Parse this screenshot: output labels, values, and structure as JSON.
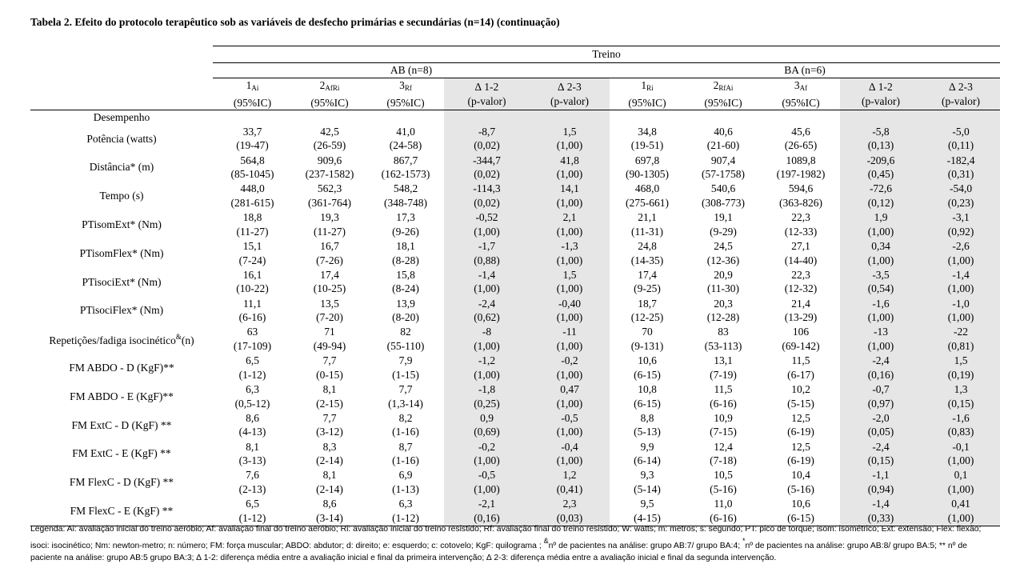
{
  "title": "Tabela 2. Efeito do protocolo terapêutico sob as variáveis de desfecho primárias e secundárias (n=14) (continuação)",
  "header": {
    "treino": "Treino",
    "group_ab": "AB (n=8)",
    "group_ba": "BA (n=6)",
    "section": "Desempenho",
    "cols": [
      {
        "main": "1",
        "sub": "Ai",
        "ci": "(95%IC)"
      },
      {
        "main": "2",
        "sub": "AfRi",
        "ci": "(95%IC)"
      },
      {
        "main": "3",
        "sub": "Rf",
        "ci": "(95%IC)"
      },
      {
        "main": "∆ 1-2",
        "sub": "",
        "ci": "(p-valor)"
      },
      {
        "main": "∆ 2-3",
        "sub": "",
        "ci": "(p-valor)"
      },
      {
        "main": "1",
        "sub": "Ri",
        "ci": "(95%IC)"
      },
      {
        "main": "2",
        "sub": "RfAi",
        "ci": "(95%IC)"
      },
      {
        "main": "3",
        "sub": "Af",
        "ci": "(95%IC)"
      },
      {
        "main": "∆ 1-2",
        "sub": "",
        "ci": "(p-valor)"
      },
      {
        "main": "∆ 2-3",
        "sub": "",
        "ci": "(p-valor)"
      }
    ]
  },
  "rows": [
    {
      "label": "Potência (watts)",
      "v": [
        [
          "33,7",
          "(19-47)"
        ],
        [
          "42,5",
          "(26-59)"
        ],
        [
          "41,0",
          "(24-58)"
        ],
        [
          "-8,7",
          "(0,02)"
        ],
        [
          "1,5",
          "(1,00)"
        ],
        [
          "34,8",
          "(19-51)"
        ],
        [
          "40,6",
          "(21-60)"
        ],
        [
          "45,6",
          "(26-65)"
        ],
        [
          "-5,8",
          "(0,13)"
        ],
        [
          "-5,0",
          "(0,11)"
        ]
      ]
    },
    {
      "label": "Distância* (m)",
      "v": [
        [
          "564,8",
          "(85-1045)"
        ],
        [
          "909,6",
          "(237-1582)"
        ],
        [
          "867,7",
          "(162-1573)"
        ],
        [
          "-344,7",
          "(0,02)"
        ],
        [
          "41,8",
          "(1,00)"
        ],
        [
          "697,8",
          "(90-1305)"
        ],
        [
          "907,4",
          "(57-1758)"
        ],
        [
          "1089,8",
          "(197-1982)"
        ],
        [
          "-209,6",
          "(0,45)"
        ],
        [
          "-182,4",
          "(0,31)"
        ]
      ]
    },
    {
      "label": "Tempo (s)",
      "v": [
        [
          "448,0",
          "(281-615)"
        ],
        [
          "562,3",
          "(361-764)"
        ],
        [
          "548,2",
          "(348-748)"
        ],
        [
          "-114,3",
          "(0,02)"
        ],
        [
          "14,1",
          "(1,00)"
        ],
        [
          "468,0",
          "(275-661)"
        ],
        [
          "540,6",
          "(308-773)"
        ],
        [
          "594,6",
          "(363-826)"
        ],
        [
          "-72,6",
          "(0,12)"
        ],
        [
          "-54,0",
          "(0,23)"
        ]
      ]
    },
    {
      "label": "PTisomExt* (Nm)",
      "v": [
        [
          "18,8",
          "(11-27)"
        ],
        [
          "19,3",
          "(11-27)"
        ],
        [
          "17,3",
          "(9-26)"
        ],
        [
          "-0,52",
          "(1,00)"
        ],
        [
          "2,1",
          "(1,00)"
        ],
        [
          "21,1",
          "(11-31)"
        ],
        [
          "19,1",
          "(9-29)"
        ],
        [
          "22,3",
          "(12-33)"
        ],
        [
          "1,9",
          "(1,00)"
        ],
        [
          "-3,1",
          "(0,92)"
        ]
      ]
    },
    {
      "label": "PTisomFlex* (Nm)",
      "v": [
        [
          "15,1",
          "(7-24)"
        ],
        [
          "16,7",
          "(7-26)"
        ],
        [
          "18,1",
          "(8-28)"
        ],
        [
          "-1,7",
          "(0,88)"
        ],
        [
          "-1,3",
          "(1,00)"
        ],
        [
          "24,8",
          "(14-35)"
        ],
        [
          "24,5",
          "(12-36)"
        ],
        [
          "27,1",
          "(14-40)"
        ],
        [
          "0,34",
          "(1,00)"
        ],
        [
          "-2,6",
          "(1,00)"
        ]
      ]
    },
    {
      "label": "PTisociExt* (Nm)",
      "v": [
        [
          "16,1",
          "(10-22)"
        ],
        [
          "17,4",
          "(10-25)"
        ],
        [
          "15,8",
          "(8-24)"
        ],
        [
          "-1,4",
          "(1,00)"
        ],
        [
          "1,5",
          "(1,00)"
        ],
        [
          "17,4",
          "(9-25)"
        ],
        [
          "20,9",
          "(11-30)"
        ],
        [
          "22,3",
          "(12-32)"
        ],
        [
          "-3,5",
          "(0,54)"
        ],
        [
          "-1,4",
          "(1,00)"
        ]
      ]
    },
    {
      "label": "PTisociFlex* (Nm)",
      "v": [
        [
          "11,1",
          "(6-16)"
        ],
        [
          "13,5",
          "(7-20)"
        ],
        [
          "13,9",
          "(8-20)"
        ],
        [
          "-2,4",
          "(0,62)"
        ],
        [
          "-0,40",
          "(1,00)"
        ],
        [
          "18,7",
          "(12-25)"
        ],
        [
          "20,3",
          "(12-28)"
        ],
        [
          "21,4",
          "(13-29)"
        ],
        [
          "-1,6",
          "(1,00)"
        ],
        [
          "-1,0",
          "(1,00)"
        ]
      ]
    },
    {
      "label": "Repetições/fadiga isocinético",
      "label_sup": "&",
      "label_tail": "(n)",
      "v": [
        [
          "63",
          "(17-109)"
        ],
        [
          "71",
          "(49-94)"
        ],
        [
          "82",
          "(55-110)"
        ],
        [
          "-8",
          "(1,00)"
        ],
        [
          "-11",
          "(1,00)"
        ],
        [
          "70",
          "(9-131)"
        ],
        [
          "83",
          "(53-113)"
        ],
        [
          "106",
          "(69-142)"
        ],
        [
          "-13",
          "(1,00)"
        ],
        [
          "-22",
          "(0,81)"
        ]
      ]
    },
    {
      "label": "FM ABDO - D (KgF)**",
      "v": [
        [
          "6,5",
          "(1-12)"
        ],
        [
          "7,7",
          "(0-15)"
        ],
        [
          "7,9",
          "(1-15)"
        ],
        [
          "-1,2",
          "(1,00)"
        ],
        [
          "-0,2",
          "(1,00)"
        ],
        [
          "10,6",
          "(6-15)"
        ],
        [
          "13,1",
          "(7-19)"
        ],
        [
          "11,5",
          "(6-17)"
        ],
        [
          "-2,4",
          "(0,16)"
        ],
        [
          "1,5",
          "(0,19)"
        ]
      ]
    },
    {
      "label": "FM ABDO - E (KgF)**",
      "v": [
        [
          "6,3",
          "(0,5-12)"
        ],
        [
          "8,1",
          "(2-15)"
        ],
        [
          "7,7",
          "(1,3-14)"
        ],
        [
          "-1,8",
          "(0,25)"
        ],
        [
          "0,47",
          "(1,00)"
        ],
        [
          "10,8",
          "(6-15)"
        ],
        [
          "11,5",
          "(6-16)"
        ],
        [
          "10,2",
          "(5-15)"
        ],
        [
          "-0,7",
          "(0,97)"
        ],
        [
          "1,3",
          "(0,15)"
        ]
      ]
    },
    {
      "label": "FM ExtC - D (KgF) **",
      "v": [
        [
          "8,6",
          "(4-13)"
        ],
        [
          "7,7",
          "(3-12)"
        ],
        [
          "8,2",
          "(1-16)"
        ],
        [
          "0,9",
          "(0,69)"
        ],
        [
          "-0,5",
          "(1,00)"
        ],
        [
          "8,8",
          "(5-13)"
        ],
        [
          "10,9",
          "(7-15)"
        ],
        [
          "12,5",
          "(6-19)"
        ],
        [
          "-2,0",
          "(0,05)"
        ],
        [
          "-1,6",
          "(0,83)"
        ]
      ]
    },
    {
      "label": "FM ExtC - E (KgF) **",
      "v": [
        [
          "8,1",
          "(3-13)"
        ],
        [
          "8,3",
          "(2-14)"
        ],
        [
          "8,7",
          "(1-16)"
        ],
        [
          "-0,2",
          "(1,00)"
        ],
        [
          "-0,4",
          "(1,00)"
        ],
        [
          "9,9",
          "(6-14)"
        ],
        [
          "12,4",
          "(7-18)"
        ],
        [
          "12,5",
          "(6-19)"
        ],
        [
          "-2,4",
          "(0,15)"
        ],
        [
          "-0,1",
          "(1,00)"
        ]
      ]
    },
    {
      "label": "FM FlexC - D (KgF) **",
      "v": [
        [
          "7,6",
          "(2-13)"
        ],
        [
          "8,1",
          "(2-14)"
        ],
        [
          "6,9",
          "(1-13)"
        ],
        [
          "-0,5",
          "(1,00)"
        ],
        [
          "1,2",
          "(0,41)"
        ],
        [
          "9,3",
          "(5-14)"
        ],
        [
          "10,5",
          "(5-16)"
        ],
        [
          "10,4",
          "(5-16)"
        ],
        [
          "-1,1",
          "(0,94)"
        ],
        [
          "0,1",
          "(1,00)"
        ]
      ]
    },
    {
      "label": "FM FlexC - E (KgF) **",
      "v": [
        [
          "6,5",
          "(1-12)"
        ],
        [
          "8,6",
          "(3-14)"
        ],
        [
          "6,3",
          "(1-12)"
        ],
        [
          "-2,1",
          "(0,16)"
        ],
        [
          "2,3",
          "(0,03)"
        ],
        [
          "9,5",
          "(4-15)"
        ],
        [
          "11,0",
          "(6-16)"
        ],
        [
          "10,6",
          "(6-15)"
        ],
        [
          "-1,4",
          "(0,33)"
        ],
        [
          "0,41",
          "(1,00)"
        ]
      ]
    }
  ],
  "legend": {
    "p1": "Legenda: Ai: avaliação inicial do treino aeróbio; Af: avaliação final do treino aeróbio; Ri: avaliação inicial do treino resistido; Rf: avaliação final do treino resistido; W: watts; m: metros; s: segundo; PT: pico de torque; isom: isométrico; Ext: extensão; Flex: flexão; isoci: isocinético; Nm: newton-metro; n: número; FM: força muscular; ABDO: abdutor; d: direito; e: esquerdo; c: cotovelo; KgF: quilograma ; ",
    "sup1": "&",
    "p2": "nº de pacientes na análise: grupo AB:7/ grupo BA:4; ",
    "sup2": "*",
    "p3": "nº de pacientes na análise: grupo AB:8/ grupo BA:5; ** nº de paciente na análise: grupo AB:5 grupo BA:3; ∆ 1-2: diferença média entre a avaliação inicial e final da primeira intervenção; ∆ 2-3: diferença média entre a avaliação inicial e final da segunda intervenção."
  }
}
